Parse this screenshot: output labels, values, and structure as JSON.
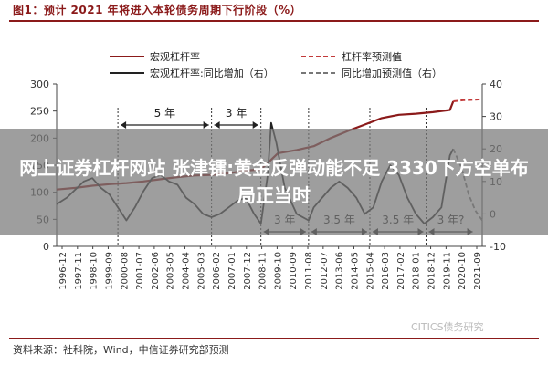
{
  "figure_title": "图1：预计 2021 年将进入本轮债务周期下行阶段（%）",
  "source_note": "资料来源：社科院，Wind，中信证券研究部预测",
  "watermark": "CITICS债务研究",
  "banner": {
    "headline": "网上证券杠杆网站 张津镭:黄金反弹动能不足 3330下方空单布局正当时"
  },
  "chart_data": {
    "type": "line",
    "left_axis": {
      "ylim": [
        0,
        300
      ],
      "ticks": [
        "0",
        "50",
        "100",
        "150",
        "200",
        "250",
        "300"
      ]
    },
    "right_axis": {
      "ylim": [
        -10,
        40
      ],
      "ticks": [
        "-10",
        "0",
        "10",
        "20",
        "30",
        "40"
      ]
    },
    "x_ticks": [
      "1996-12",
      "1997-11",
      "1998-10",
      "1999-09",
      "2000-08",
      "2001-07",
      "2002-06",
      "2003-05",
      "2004-04",
      "2005-03",
      "2006-02",
      "2007-01",
      "2007-12",
      "2008-11",
      "2009-10",
      "2010-09",
      "2011-08",
      "2012-07",
      "2013-06",
      "2014-05",
      "2015-04",
      "2016-03",
      "2017-02",
      "2018-01",
      "2018-12",
      "2019-11",
      "2020-10",
      "2021-09"
    ],
    "legend": [
      {
        "name": "宏观杠杆率",
        "color": "#8b1a1a",
        "style": "solid"
      },
      {
        "name": "杠杆率预测值",
        "color": "#c23a3a",
        "style": "dashed"
      },
      {
        "name": "宏观杠杆率:同比增加（右）",
        "color": "#222222",
        "style": "solid"
      },
      {
        "name": "同比增加预测值（右）",
        "color": "#777777",
        "style": "dashed"
      }
    ],
    "annotations": [
      "5 年",
      "3 年",
      "3 年",
      "3.5 年",
      "3.5 年",
      "3 年?"
    ],
    "series": [
      {
        "name": "宏观杠杆率",
        "axis": "left",
        "x": [
          1996.9,
          1998,
          1999,
          2000,
          2001,
          2002,
          2003,
          2004,
          2005,
          2006,
          2007,
          2008,
          2008.9,
          2009.9,
          2011,
          2012,
          2013,
          2014,
          2015,
          2016,
          2017,
          2018,
          2019,
          2020,
          2020.2
        ],
        "values": [
          105,
          108,
          112,
          115,
          117,
          120,
          124,
          128,
          131,
          132,
          135,
          140,
          142,
          172,
          178,
          185,
          200,
          213,
          225,
          237,
          243,
          245,
          248,
          252,
          268
        ]
      },
      {
        "name": "杠杆率预测值",
        "axis": "left",
        "x": [
          2020.2,
          2020.8,
          2021.5,
          2021.9
        ],
        "values": [
          268,
          270,
          271,
          272
        ]
      },
      {
        "name": "宏观杠杆率:同比增加（右）",
        "axis": "right",
        "x": [
          1996.9,
          1997.5,
          1998.5,
          1999,
          1999.5,
          2000,
          2000.5,
          2001,
          2001.5,
          2002,
          2002.5,
          2003,
          2003.5,
          2004,
          2004.5,
          2005,
          2005.5,
          2006,
          2006.5,
          2007,
          2007.5,
          2008,
          2008.5,
          2008.9,
          2009.3,
          2009.5,
          2009.8,
          2010.3,
          2011,
          2011.7,
          2012,
          2012.5,
          2013,
          2013.5,
          2014,
          2014.5,
          2015,
          2015.5,
          2016,
          2016.5,
          2017,
          2017.5,
          2018,
          2018.5,
          2019,
          2019.5,
          2020,
          2020.2
        ],
        "values": [
          3,
          5,
          10,
          11,
          8,
          6,
          2,
          -2,
          2,
          7,
          11,
          12,
          10,
          9,
          5,
          3,
          0,
          -1,
          0,
          2,
          4,
          5,
          0,
          -3,
          12,
          28,
          22,
          8,
          0,
          -2,
          2,
          5,
          8,
          10,
          8,
          5,
          0,
          2,
          10,
          15,
          12,
          5,
          0,
          -3,
          -1,
          2,
          18,
          20
        ]
      },
      {
        "name": "同比增加预测值（右）",
        "axis": "right",
        "x": [
          2020.2,
          2020.7,
          2021.1,
          2021.5,
          2021.9
        ],
        "values": [
          20,
          14,
          6,
          1,
          -2
        ]
      }
    ]
  }
}
